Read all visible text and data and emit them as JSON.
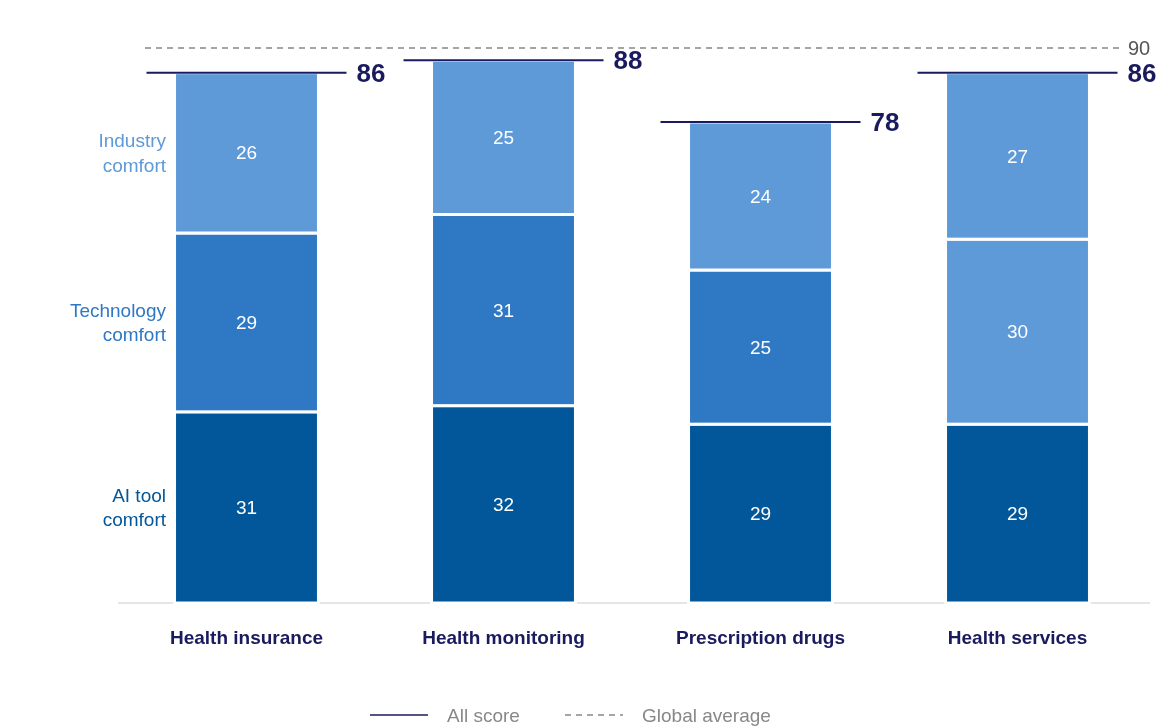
{
  "chart_data": {
    "type": "bar",
    "stacked": true,
    "data_labels": true,
    "categories": [
      "Health insurance",
      "Health monitoring",
      "Prescription drugs",
      "Health services"
    ],
    "series": [
      {
        "name": "AI tool comfort",
        "color": "#02579a",
        "values": [
          31,
          32,
          29,
          29
        ]
      },
      {
        "name": "Technology comfort",
        "color": "#2e78c4",
        "colors": [
          "#2e78c4",
          "#2e78c4",
          "#2e78c4",
          "#5e9ad8"
        ],
        "values": [
          29,
          31,
          25,
          30
        ]
      },
      {
        "name": "Industry comfort",
        "color": "#5e9ad8",
        "values": [
          26,
          25,
          24,
          27
        ]
      }
    ],
    "totals": [
      "86",
      "88",
      "78",
      "86"
    ],
    "ref_lines": [
      {
        "axis": "y",
        "value": 90,
        "label": "90",
        "color": "#888888",
        "line_style": "dashed"
      }
    ],
    "annotations": [
      "All score",
      "Global average"
    ],
    "legend": "left"
  }
}
